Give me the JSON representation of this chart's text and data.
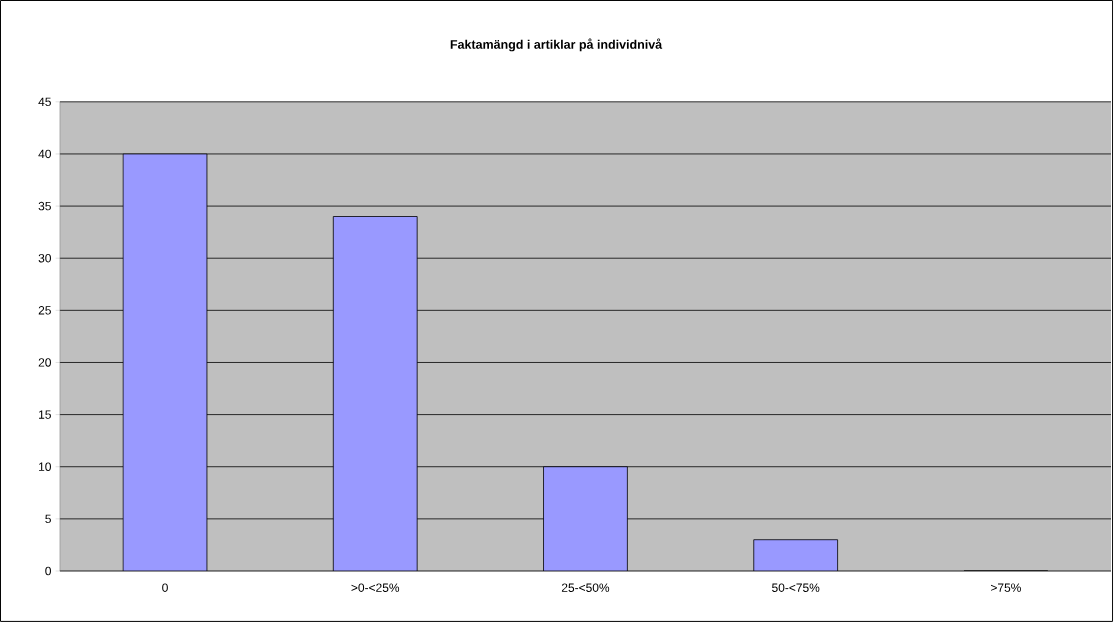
{
  "chart_data": {
    "type": "bar",
    "title": "Faktamängd i artiklar på individnivå",
    "categories": [
      "0",
      ">0-<25%",
      "25-<50%",
      "50-<75%",
      ">75%"
    ],
    "values": [
      40,
      34,
      10,
      3,
      0
    ],
    "color": "#9999ff",
    "ylim": [
      0,
      45
    ],
    "yticks": [
      0,
      5,
      10,
      15,
      20,
      25,
      30,
      35,
      40,
      45
    ],
    "grid": "y"
  }
}
